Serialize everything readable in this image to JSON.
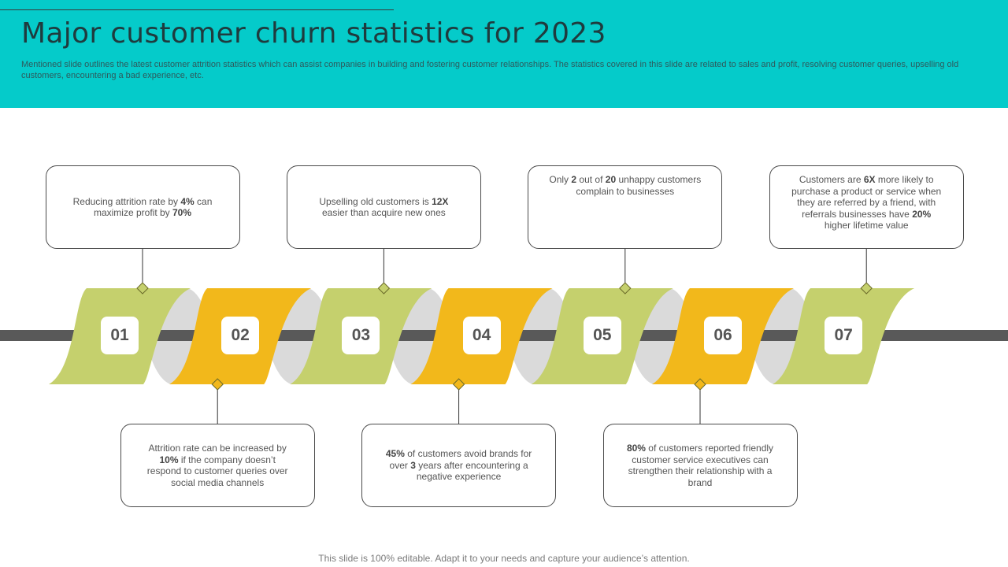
{
  "slide": {
    "title": "Major customer churn statistics for 2023",
    "subtitle": "Mentioned slide outlines the latest customer attrition statistics which can assist companies in building and fostering customer relationships. The statistics covered in this slide are related to sales and profit, resolving customer queries, upselling old customers, encountering a bad experience, etc.",
    "footer": "This slide is 100% editable. Adapt it to your needs and capture your audience’s attention."
  },
  "colors": {
    "header": "#05cbca",
    "green": "#c5d06d",
    "orange": "#f2b81b",
    "grey_band": "#dadada",
    "axis": "#595959",
    "connector": "#333333"
  },
  "steps": [
    {
      "label": "01",
      "color": "green",
      "position": "top",
      "parts": [
        {
          "t": "Reducing attrition rate by "
        },
        {
          "t": "4%",
          "b": true
        },
        {
          "t": " can maximize profit by "
        },
        {
          "t": "70%",
          "b": true
        }
      ]
    },
    {
      "label": "02",
      "color": "orange",
      "position": "bottom",
      "parts": [
        {
          "t": "Attrition rate can be increased by "
        },
        {
          "t": "10%",
          "b": true
        },
        {
          "t": " if the company doesn’t respond to customer queries over social media channels"
        }
      ]
    },
    {
      "label": "03",
      "color": "green",
      "position": "top",
      "parts": [
        {
          "t": "Upselling old customers is "
        },
        {
          "t": "12X",
          "b": true
        },
        {
          "t": " easier than acquire new ones"
        }
      ]
    },
    {
      "label": "04",
      "color": "orange",
      "position": "bottom",
      "parts": [
        {
          "t": "45%",
          "b": true
        },
        {
          "t": " of customers avoid brands for over "
        },
        {
          "t": "3",
          "b": true
        },
        {
          "t": " years after encountering a negative experience"
        }
      ]
    },
    {
      "label": "05",
      "color": "green",
      "position": "top",
      "parts": [
        {
          "t": "Only "
        },
        {
          "t": "2",
          "b": true
        },
        {
          "t": " out of "
        },
        {
          "t": "20",
          "b": true
        },
        {
          "t": " unhappy customers complain to businesses"
        }
      ]
    },
    {
      "label": "06",
      "color": "orange",
      "position": "bottom",
      "parts": [
        {
          "t": "80%",
          "b": true
        },
        {
          "t": " of customers reported friendly customer service executives can strengthen their relationship with a brand"
        }
      ]
    },
    {
      "label": "07",
      "color": "green",
      "position": "top",
      "parts": [
        {
          "t": "Customers are "
        },
        {
          "t": "6X",
          "b": true
        },
        {
          "t": " more likely to purchase a product or service when they are referred by a friend, with referrals businesses have "
        },
        {
          "t": "20%",
          "b": true
        },
        {
          "t": " higher lifetime value"
        }
      ]
    }
  ]
}
